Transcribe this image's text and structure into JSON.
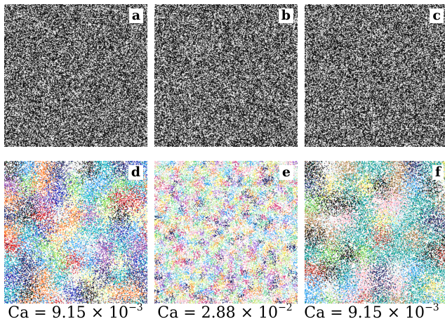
{
  "panels": [
    {
      "label": "a",
      "type": "gray",
      "seed": 11
    },
    {
      "label": "b",
      "type": "gray",
      "seed": 23
    },
    {
      "label": "c",
      "type": "gray",
      "seed": 37
    },
    {
      "label": "d",
      "type": "color",
      "seed": 41,
      "blob": 0.55,
      "palette": [
        "#19b7c9",
        "#1fb1c4",
        "#2a2f6a",
        "#1a1a1a",
        "#2c36b8",
        "#d8232a",
        "#f2f2a0",
        "#7ed957",
        "#e8e8e8",
        "#9b59b6",
        "#ff8a3d",
        "#3fa9f5"
      ]
    },
    {
      "label": "e",
      "type": "color",
      "seed": 53,
      "blob": 0.18,
      "palette": [
        "#f5e96b",
        "#8fe0e8",
        "#c6e58a",
        "#f7b7c9",
        "#a66bd9",
        "#5fd39b",
        "#f39b4b",
        "#3fa9f5",
        "#e8e8e8",
        "#d94c8a",
        "#2a2f6a",
        "#b9f0b0"
      ]
    },
    {
      "label": "f",
      "type": "color",
      "seed": 67,
      "blob": 0.6,
      "palette": [
        "#1a9e9a",
        "#23a8a3",
        "#2a2f6a",
        "#1a1a1a",
        "#e8e8e8",
        "#8fe0e8",
        "#c0392b",
        "#f5e96b",
        "#b98b5a",
        "#7ed957",
        "#f7b7c9",
        "#3fa9f5"
      ]
    }
  ],
  "captions": [
    {
      "prefix": "Ca = 9.15 × 10",
      "exp": "−3"
    },
    {
      "prefix": "Ca = 2.88 × 10",
      "exp": "−2"
    },
    {
      "prefix": "Ca = 9.15 × 10",
      "exp": "−3"
    }
  ]
}
